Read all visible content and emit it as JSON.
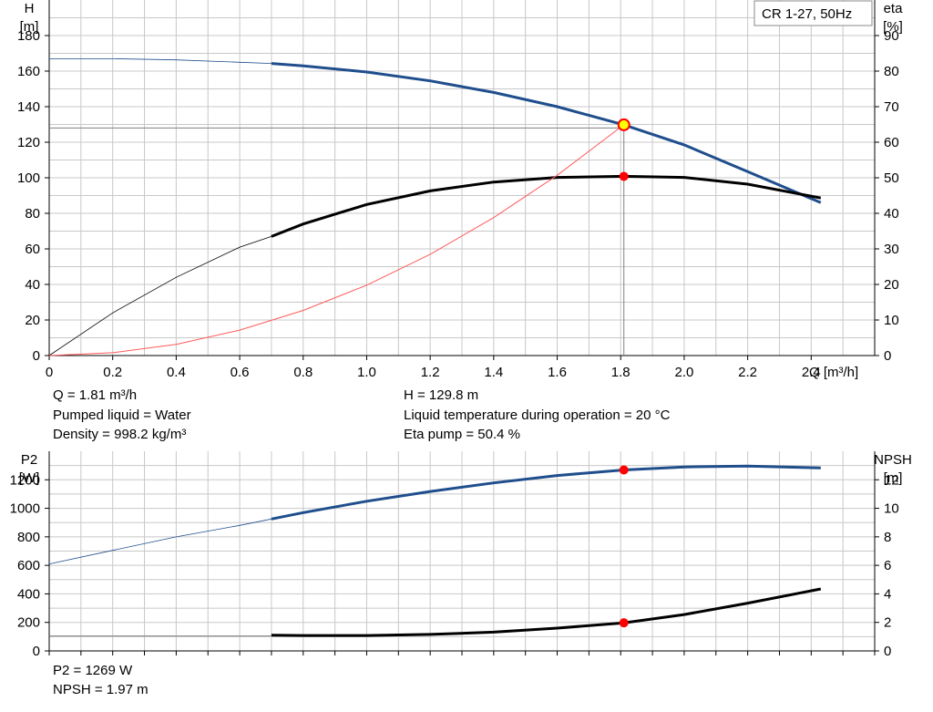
{
  "chart_data": [
    {
      "type": "line",
      "title": "CR 1-27, 50Hz",
      "xlabel": "Q [m³/h]",
      "xlim": [
        0,
        2.6
      ],
      "xticks": [
        0,
        0.2,
        0.4,
        0.6,
        0.8,
        1.0,
        1.2,
        1.4,
        1.6,
        1.8,
        2.0,
        2.2,
        2.4
      ],
      "xtick_labels": [
        "0",
        "0.2",
        "0.4",
        "0.6",
        "0.8",
        "1.0",
        "1.2",
        "1.4",
        "1.6",
        "1.8",
        "2.0",
        "2.2",
        "2.4"
      ],
      "y_left": {
        "label_lines": [
          "H",
          "[m]"
        ],
        "ylim": [
          0,
          200
        ],
        "ticks": [
          0,
          20,
          40,
          60,
          80,
          100,
          120,
          140,
          160,
          180
        ]
      },
      "y_right": {
        "label_lines": [
          "eta",
          "[%]"
        ],
        "ylim": [
          0,
          100
        ],
        "ticks": [
          0,
          10,
          20,
          30,
          40,
          50,
          60,
          70,
          80,
          90
        ]
      },
      "grid": true,
      "duty_point": {
        "x": 1.81,
        "H": 129.8,
        "eta": 50.4
      },
      "series": [
        {
          "axis": "left",
          "color": "#1f4e8c",
          "x": [
            0,
            0.2,
            0.4,
            0.6,
            0.7,
            0.8,
            1.0,
            1.2,
            1.4,
            1.6,
            1.81,
            2.0,
            2.2,
            2.43
          ],
          "y": [
            167,
            167,
            166.3,
            165,
            164.3,
            163,
            159.5,
            154.5,
            148,
            140,
            129.8,
            118.5,
            103.5,
            86
          ]
        },
        {
          "axis": "right",
          "color": "#000000",
          "x": [
            0,
            0.2,
            0.4,
            0.6,
            0.7,
            0.8,
            1.0,
            1.2,
            1.4,
            1.6,
            1.81,
            2.0,
            2.2,
            2.43
          ],
          "y": [
            0,
            12,
            22,
            30.5,
            33.5,
            37,
            42.5,
            46.3,
            48.8,
            50.1,
            50.4,
            50.1,
            48.2,
            44.3
          ]
        },
        {
          "axis": "left",
          "color": "#ff5a5a",
          "x": [
            0,
            0.2,
            0.4,
            0.6,
            0.8,
            1.0,
            1.2,
            1.4,
            1.6,
            1.81
          ],
          "y": [
            0,
            1.6,
            6.3,
            14.3,
            25.4,
            39.6,
            57,
            77.6,
            101.4,
            129.8
          ]
        }
      ]
    },
    {
      "type": "line",
      "xlim": [
        0,
        2.6
      ],
      "y_left": {
        "label_lines": [
          "P2",
          "[W]"
        ],
        "ylim": [
          0,
          1400
        ],
        "ticks": [
          0,
          200,
          400,
          600,
          800,
          1000,
          1200
        ]
      },
      "y_right": {
        "label_lines": [
          "NPSH",
          "[m]"
        ],
        "ylim": [
          0,
          14
        ],
        "ticks": [
          0,
          2,
          4,
          6,
          8,
          10,
          12
        ]
      },
      "grid": true,
      "duty_point": {
        "x": 1.81,
        "P2": 1269,
        "NPSH": 1.97
      },
      "series": [
        {
          "axis": "left",
          "color": "#1f4e8c",
          "x": [
            0,
            0.2,
            0.4,
            0.6,
            0.7,
            0.8,
            1.0,
            1.2,
            1.4,
            1.6,
            1.81,
            2.0,
            2.2,
            2.43
          ],
          "y": [
            610,
            705,
            800,
            880,
            925,
            970,
            1050,
            1118,
            1178,
            1230,
            1269,
            1290,
            1296,
            1283
          ]
        },
        {
          "axis": "right",
          "color": "#000000",
          "x": [
            0.7,
            0.8,
            1.0,
            1.2,
            1.4,
            1.6,
            1.81,
            2.0,
            2.2,
            2.43
          ],
          "y": [
            1.1,
            1.08,
            1.08,
            1.16,
            1.32,
            1.6,
            1.97,
            2.55,
            3.35,
            4.35
          ]
        }
      ]
    }
  ],
  "info": {
    "q": "Q = 1.81 m³/h",
    "liquid": "Pumped liquid = Water",
    "density": "Density = 998.2 kg/m³",
    "h": "H = 129.8 m",
    "temp": "Liquid temperature during operation = 20 °C",
    "eta": "Eta pump = 50.4 %",
    "p2": "P2 = 1269 W",
    "npsh": "NPSH = 1.97 m"
  }
}
